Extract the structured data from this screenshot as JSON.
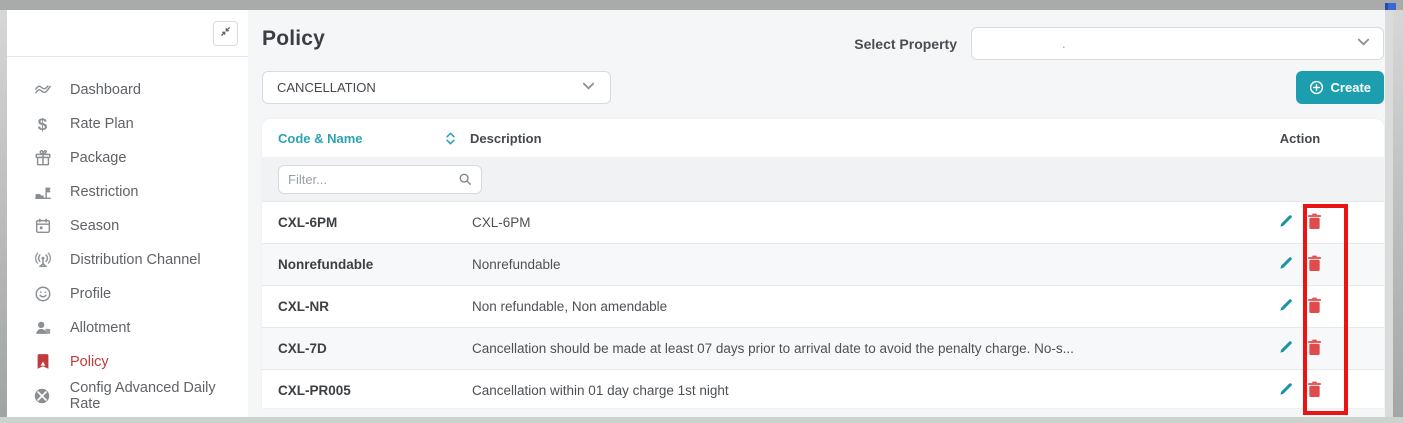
{
  "colors": {
    "accent_teal": "#1d9eae",
    "active_nav_red": "#c13b3b",
    "trash_red": "#e04b4b",
    "annotation_red": "#ec1313"
  },
  "sidebar": {
    "collapse_icon": "collapse-icon",
    "items": [
      {
        "id": "dashboard",
        "label": "Dashboard",
        "icon": "dashboard-icon",
        "active": false
      },
      {
        "id": "rate-plan",
        "label": "Rate Plan",
        "icon": "rate-plan-icon",
        "active": false
      },
      {
        "id": "package",
        "label": "Package",
        "icon": "package-icon",
        "active": false
      },
      {
        "id": "restriction",
        "label": "Restriction",
        "icon": "restriction-icon",
        "active": false
      },
      {
        "id": "season",
        "label": "Season",
        "icon": "season-icon",
        "active": false
      },
      {
        "id": "distribution-channel",
        "label": "Distribution Channel",
        "icon": "distribution-channel-icon",
        "active": false
      },
      {
        "id": "profile",
        "label": "Profile",
        "icon": "profile-icon",
        "active": false
      },
      {
        "id": "allotment",
        "label": "Allotment",
        "icon": "allotment-icon",
        "active": false
      },
      {
        "id": "policy",
        "label": "Policy",
        "icon": "policy-icon",
        "active": true
      },
      {
        "id": "config-advanced-daily-rate",
        "label": "Config Advanced Daily Rate",
        "icon": "config-advanced-daily-rate-icon",
        "active": false
      }
    ]
  },
  "header": {
    "title": "Policy",
    "select_property_label": "Select Property",
    "select_property_value": "."
  },
  "toolbar": {
    "policy_type_value": "CANCELLATION",
    "create_label": "Create"
  },
  "table": {
    "columns": {
      "code": "Code & Name",
      "description": "Description",
      "action": "Action"
    },
    "filter_placeholder": "Filter...",
    "rows": [
      {
        "code": "CXL-6PM",
        "description": "CXL-6PM"
      },
      {
        "code": "Nonrefundable",
        "description": "Nonrefundable"
      },
      {
        "code": "CXL-NR",
        "description": "Non refundable, Non amendable"
      },
      {
        "code": "CXL-7D",
        "description": "Cancellation should be made at least 07 days prior to arrival date to avoid the penalty charge. No-s..."
      },
      {
        "code": "CXL-PR005",
        "description": "Cancellation within 01 day charge 1st night"
      }
    ]
  }
}
